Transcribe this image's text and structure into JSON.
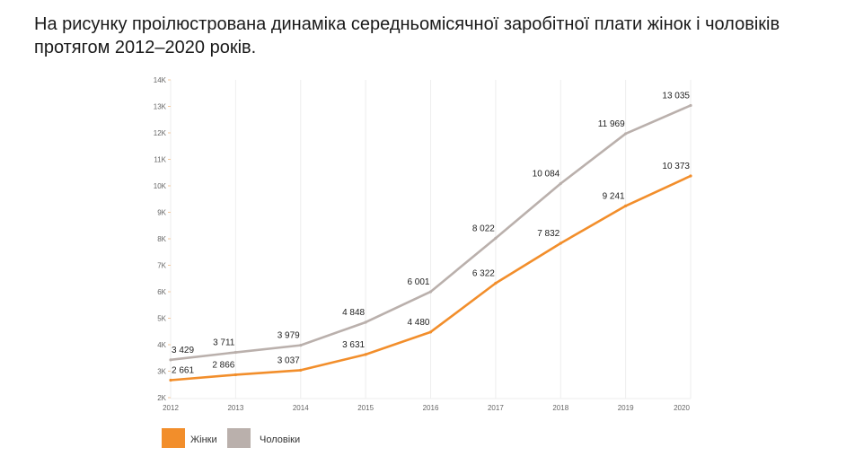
{
  "title": "На рисунку проілюстрована динаміка середньомісячної заробітної плати жінок і чоловіків протягом 2012–2020 років.",
  "chart_data": {
    "type": "line",
    "x": [
      2012,
      2013,
      2014,
      2015,
      2016,
      2017,
      2018,
      2019,
      2020
    ],
    "x_tick_labels": [
      "2012",
      "2013",
      "2014",
      "2015",
      "2016",
      "2017",
      "2018",
      "2019",
      "2020"
    ],
    "y_tick_labels": [
      "2K",
      "3K",
      "4K",
      "5K",
      "6K",
      "7K",
      "8K",
      "9K",
      "10K",
      "11K",
      "12K",
      "13K",
      "14K"
    ],
    "y_ticks": [
      2000,
      3000,
      4000,
      5000,
      6000,
      7000,
      8000,
      9000,
      10000,
      11000,
      12000,
      13000,
      14000
    ],
    "ylim": [
      2000,
      14000
    ],
    "grid": "vertical",
    "legend": "bottom-left",
    "series": [
      {
        "name": "Жінки",
        "color": "#f28e2b",
        "values": [
          2661,
          2866,
          3037,
          3631,
          4480,
          6322,
          7832,
          9241,
          10373
        ],
        "labels": [
          "2 661",
          "2 866",
          "3 037",
          "3 631",
          "4 480",
          "6 322",
          "7 832",
          "9 241",
          "10 373"
        ]
      },
      {
        "name": "Чоловіки",
        "color": "#bab0ac",
        "values": [
          3429,
          3711,
          3979,
          4848,
          6001,
          8022,
          10084,
          11969,
          13035
        ],
        "labels": [
          "3 429",
          "3 711",
          "3 979",
          "4 848",
          "6 001",
          "8 022",
          "10 084",
          "11 969",
          "13 035"
        ]
      }
    ]
  }
}
